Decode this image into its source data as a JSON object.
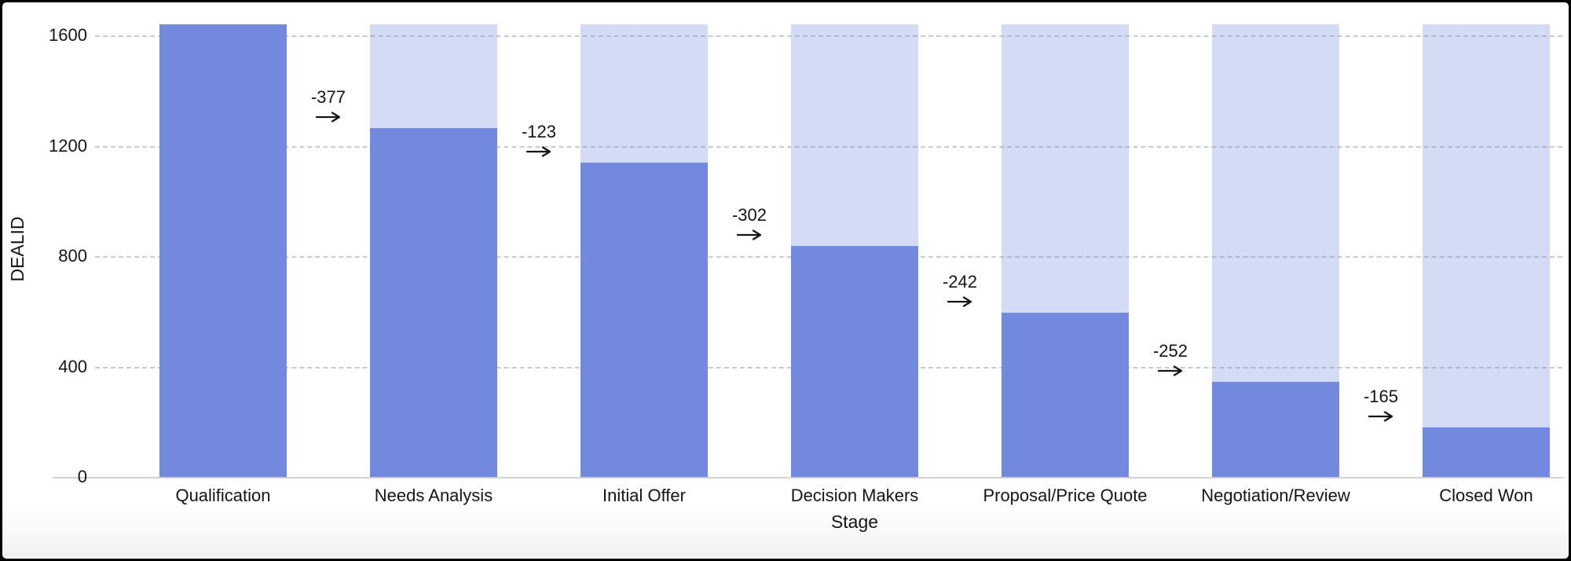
{
  "chart_data": {
    "type": "bar",
    "subtype": "funnel-bars-with-drop-annotations",
    "title": "",
    "xlabel": "Stage",
    "ylabel": "DEALID",
    "categories": [
      "Qualification",
      "Needs Analysis",
      "Initial Offer",
      "Decision Makers",
      "Proposal/Price Quote",
      "Negotiation/Review",
      "Closed Won"
    ],
    "values": [
      1640,
      1263,
      1140,
      838,
      596,
      344,
      179
    ],
    "max_value": 1640,
    "deltas": [
      -377,
      -123,
      -302,
      -242,
      -252,
      -165
    ],
    "delta_labels": [
      "-377",
      "-123",
      "-302",
      "-242",
      "-252",
      "-165"
    ],
    "y_ticks": [
      0,
      400,
      800,
      1200,
      1600
    ],
    "y_tick_labels": [
      "0",
      "400",
      "800",
      "1200",
      "1600"
    ],
    "ylim": [
      0,
      1719
    ],
    "grid": "horizontal-dashed",
    "legend": "none",
    "annotation_arrow": "right-arrow",
    "colors": {
      "bar": "#7289de",
      "bar_faded": "rgba(114,137,222,0.30)",
      "gridline": "#cbcbcb",
      "axis_line": "#d2d2d2",
      "text": "#141414",
      "background": "#ffffff",
      "frame": "#000000"
    }
  }
}
